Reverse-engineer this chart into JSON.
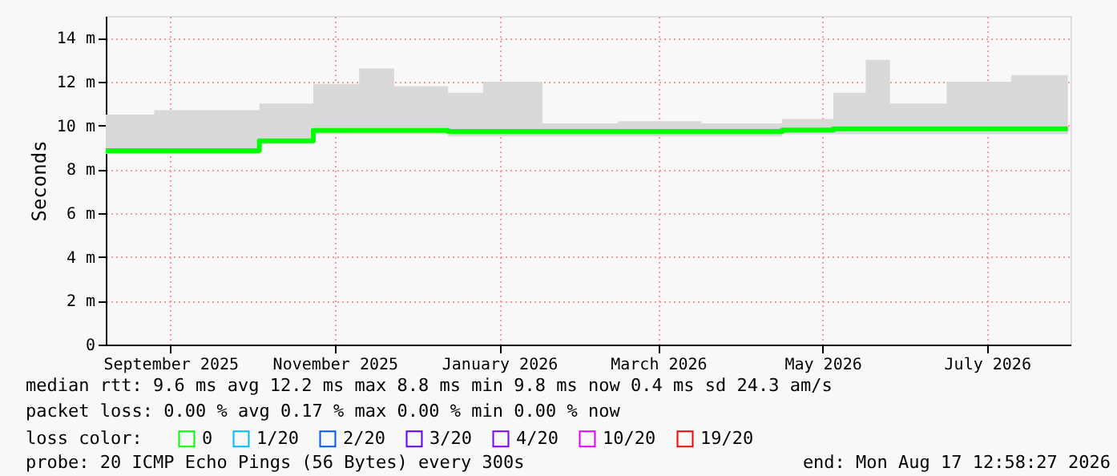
{
  "chart_data": {
    "type": "step",
    "ylabel": "Seconds",
    "xlim": [
      "2025-08-23",
      "2026-08-16"
    ],
    "xticks": [
      {
        "value": "2025-09-16",
        "label": "September 2025"
      },
      {
        "value": "2025-11-16",
        "label": "November 2025"
      },
      {
        "value": "2026-01-16",
        "label": "January 2026"
      },
      {
        "value": "2026-03-16",
        "label": "March 2026"
      },
      {
        "value": "2026-05-16",
        "label": "May 2026"
      },
      {
        "value": "2026-07-16",
        "label": "July 2026"
      }
    ],
    "ylim": [
      0,
      15
    ],
    "yticks": [
      0,
      {
        "value": 2,
        "label": "2 m"
      },
      {
        "value": 4,
        "label": "4 m"
      },
      {
        "value": 6,
        "label": "6 m"
      },
      {
        "value": 8,
        "label": "8 m"
      },
      {
        "value": 10,
        "label": "10 m"
      },
      {
        "value": 12,
        "label": "12 m"
      },
      {
        "value": 14,
        "label": "14 m"
      }
    ],
    "grid": true,
    "legend": "bottom",
    "legend_title": "loss color:",
    "series": [
      {
        "name": "0",
        "color": "#00ff00",
        "x": [
          "2025-08-23",
          "2025-09-10",
          "2025-10-19",
          "2025-11-08",
          "2025-11-25",
          "2025-12-08",
          "2025-12-28",
          "2026-01-10",
          "2026-02-01",
          "2026-03-01",
          "2026-04-01",
          "2026-05-01",
          "2026-05-20",
          "2026-06-01",
          "2026-06-10",
          "2026-07-01",
          "2026-07-25",
          "2026-08-15"
        ],
        "values": [
          8.85,
          8.85,
          9.3,
          9.78,
          9.78,
          9.78,
          9.73,
          9.73,
          9.73,
          9.73,
          9.73,
          9.8,
          9.85,
          9.85,
          9.85,
          9.85,
          9.85,
          9.85
        ],
        "lower": [
          8.7,
          8.7,
          9.2,
          9.6,
          9.6,
          9.6,
          9.5,
          9.5,
          9.5,
          9.5,
          9.5,
          9.6,
          9.6,
          9.6,
          9.6,
          9.6,
          9.6,
          9.6
        ],
        "upper": [
          10.5,
          10.7,
          11.0,
          11.9,
          12.6,
          11.8,
          11.5,
          12.0,
          10.1,
          10.2,
          10.1,
          10.3,
          11.5,
          13.0,
          11.0,
          12.0,
          12.3,
          12.3
        ]
      },
      {
        "name": "1/20",
        "color": "#00b8ff"
      },
      {
        "name": "2/20",
        "color": "#0059ff"
      },
      {
        "name": "3/20",
        "color": "#5e00ff"
      },
      {
        "name": "4/20",
        "color": "#7e00ff"
      },
      {
        "name": "10/20",
        "color": "#dd00ff"
      },
      {
        "name": "19/20",
        "color": "#ff0000"
      }
    ],
    "annotations": [
      "median rtt:  9.6 ms avg  12.2 ms max  8.8 ms min  9.8 ms now  0.4 ms sd  24.3   am/s",
      "packet loss: 0.00 % avg  0.17 % max  0.00 % min  0.00 % now",
      "probe:       20 ICMP Echo Pings (56 Bytes) every 300s",
      "end: Mon Aug 17 12:58:27 2026"
    ]
  }
}
